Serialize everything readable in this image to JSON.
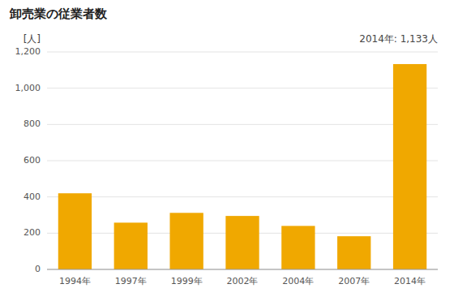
{
  "chart_data": {
    "type": "bar",
    "title": "卸売業の従業者数",
    "ylabel": "[人]",
    "annotation": "2014年: 1,133人",
    "categories": [
      "1994年",
      "1997年",
      "1999年",
      "2002年",
      "2004年",
      "2007年",
      "2014年"
    ],
    "values": [
      420,
      258,
      312,
      295,
      240,
      183,
      1133
    ],
    "color": "#F0A800",
    "ylim": [
      0,
      1200
    ],
    "yticks": [
      0,
      200,
      400,
      600,
      800,
      {
        "value": 1000,
        "label": "1,000"
      },
      {
        "value": 1200,
        "label": "1,200"
      }
    ],
    "grid": true
  }
}
